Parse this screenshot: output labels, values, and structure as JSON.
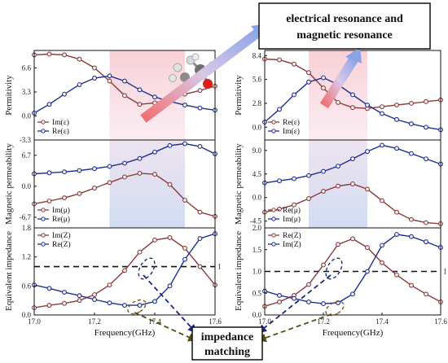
{
  "annotations": {
    "resonance_line1": "electrical resonance and",
    "resonance_line2": "magnetic resonance",
    "impedance_line1": "impedance",
    "impedance_line2": "matching",
    "unity_label": "1"
  },
  "colors": {
    "series_red": "#8b3a3a",
    "series_blue": "#1f2f8f",
    "shade_pink": "#f8c8cf",
    "shade_blue": "#c7d3ee"
  },
  "chart_data": [
    {
      "type": "line",
      "panel": "left-top",
      "ylabel": "Permitivity",
      "xlabel": "",
      "xlim": [
        17.0,
        17.6
      ],
      "ylim": [
        -3.3,
        9.0
      ],
      "yticks": [
        "-3.3",
        "0.0",
        "3.3",
        "6.6"
      ],
      "legend_position": "bottom-left",
      "series": [
        {
          "name": "Im(ε)",
          "color": "red",
          "x": [
            17.0,
            17.05,
            17.1,
            17.15,
            17.2,
            17.25,
            17.3,
            17.35,
            17.4,
            17.45,
            17.5,
            17.55,
            17.6
          ],
          "y": [
            8.4,
            8.5,
            8.4,
            7.8,
            6.6,
            4.8,
            2.8,
            1.6,
            1.8,
            2.4,
            3.0,
            3.5,
            4.1
          ]
        },
        {
          "name": "Re(ε)",
          "color": "blue",
          "x": [
            17.0,
            17.05,
            17.1,
            17.15,
            17.2,
            17.25,
            17.3,
            17.35,
            17.4,
            17.45,
            17.5,
            17.55,
            17.6
          ],
          "y": [
            0.4,
            1.6,
            3.0,
            4.3,
            5.2,
            5.5,
            4.8,
            3.6,
            2.6,
            2.0,
            1.5,
            1.1,
            0.8
          ]
        }
      ],
      "shade": {
        "color": "pink",
        "x": [
          17.25,
          17.5
        ]
      }
    },
    {
      "type": "line",
      "panel": "left-middle",
      "ylabel": "Magnetic permeability",
      "xlabel": "",
      "xlim": [
        17.0,
        17.6
      ],
      "ylim": [
        -9.0,
        10.0
      ],
      "yticks": [
        "-6.7",
        "0.0",
        "6.7"
      ],
      "legend_position": "bottom-left",
      "series": [
        {
          "name": "Im(μ)",
          "color": "red",
          "x": [
            17.0,
            17.05,
            17.1,
            17.15,
            17.2,
            17.25,
            17.3,
            17.35,
            17.4,
            17.45,
            17.5,
            17.55,
            17.6
          ],
          "y": [
            -3.8,
            -3.2,
            -2.5,
            -1.6,
            -0.4,
            0.8,
            2.0,
            2.8,
            2.6,
            0.4,
            -3.0,
            -5.6,
            -6.5
          ]
        },
        {
          "name": "Re(μ)",
          "color": "blue",
          "x": [
            17.0,
            17.05,
            17.1,
            17.15,
            17.2,
            17.25,
            17.3,
            17.35,
            17.4,
            17.45,
            17.5,
            17.55,
            17.6
          ],
          "y": [
            2.7,
            2.9,
            3.1,
            3.4,
            3.8,
            4.3,
            5.0,
            6.0,
            7.4,
            8.8,
            9.2,
            8.6,
            7.0
          ]
        }
      ],
      "shade": {
        "color": "blue",
        "x": [
          17.25,
          17.5
        ]
      }
    },
    {
      "type": "line",
      "panel": "left-bottom",
      "ylabel": "Equivalent impedance",
      "xlabel": "Frequency(GHz)",
      "xlim": [
        17.0,
        17.6
      ],
      "ylim": [
        0.0,
        1.8
      ],
      "xticks": [
        "17.0",
        "17.2",
        "17.4",
        "17.6"
      ],
      "yticks": [
        "0.0",
        "0.6",
        "1.2",
        "1.8"
      ],
      "legend_position": "top-left",
      "hline": 1.0,
      "series": [
        {
          "name": "Im(Z)",
          "color": "red",
          "x": [
            17.0,
            17.05,
            17.1,
            17.15,
            17.2,
            17.25,
            17.3,
            17.35,
            17.4,
            17.45,
            17.5,
            17.55,
            17.6
          ],
          "y": [
            0.15,
            0.2,
            0.24,
            0.3,
            0.42,
            0.62,
            0.92,
            1.3,
            1.55,
            1.6,
            1.38,
            1.0,
            0.62
          ]
        },
        {
          "name": "Re(Z)",
          "color": "blue",
          "x": [
            17.0,
            17.05,
            17.1,
            17.15,
            17.2,
            17.25,
            17.3,
            17.35,
            17.4,
            17.45,
            17.5,
            17.55,
            17.6
          ],
          "y": [
            0.62,
            0.55,
            0.47,
            0.4,
            0.32,
            0.25,
            0.2,
            0.2,
            0.28,
            0.6,
            1.15,
            1.58,
            1.68
          ]
        }
      ]
    },
    {
      "type": "line",
      "panel": "right-top",
      "ylabel": "Permitivity",
      "xlabel": "",
      "xlim": [
        17.0,
        17.6
      ],
      "ylim": [
        -1.5,
        9.0
      ],
      "yticks": [
        "0.0",
        "2.8",
        "5.6",
        "8.4"
      ],
      "legend_position": "bottom-left",
      "series": [
        {
          "name": "Re(ε)",
          "color": "red",
          "x": [
            17.0,
            17.05,
            17.1,
            17.15,
            17.2,
            17.25,
            17.3,
            17.35,
            17.4,
            17.45,
            17.5,
            17.55,
            17.6
          ],
          "y": [
            8.0,
            7.9,
            7.4,
            6.4,
            4.6,
            2.9,
            2.3,
            2.2,
            2.4,
            2.6,
            2.8,
            3.0,
            3.2
          ]
        },
        {
          "name": "Im(ε)",
          "color": "blue",
          "x": [
            17.0,
            17.05,
            17.1,
            17.15,
            17.2,
            17.25,
            17.3,
            17.35,
            17.4,
            17.45,
            17.5,
            17.55,
            17.6
          ],
          "y": [
            0.6,
            2.1,
            3.8,
            5.3,
            5.8,
            5.0,
            3.8,
            2.6,
            1.6,
            0.9,
            0.4,
            0.0,
            -0.3
          ]
        }
      ],
      "shade": {
        "color": "pink",
        "x": [
          17.15,
          17.35
        ]
      }
    },
    {
      "type": "line",
      "panel": "right-middle",
      "ylabel": "Magnetic permeability",
      "xlabel": "",
      "xlim": [
        17.0,
        17.6
      ],
      "ylim": [
        -5.8,
        11.0
      ],
      "yticks": [
        "-4.5",
        "0.0",
        "4.5",
        "9.0"
      ],
      "legend_position": "bottom-left",
      "series": [
        {
          "name": "Re(μ)",
          "color": "red",
          "x": [
            17.0,
            17.05,
            17.1,
            17.15,
            17.2,
            17.25,
            17.3,
            17.35,
            17.4,
            17.45,
            17.5,
            17.55,
            17.6
          ],
          "y": [
            -2.8,
            -2.2,
            -1.4,
            -0.2,
            1.2,
            2.2,
            2.6,
            1.6,
            -0.6,
            -2.8,
            -4.2,
            -4.8,
            -5.0
          ]
        },
        {
          "name": "Im(μ)",
          "color": "blue",
          "x": [
            17.0,
            17.05,
            17.1,
            17.15,
            17.2,
            17.25,
            17.3,
            17.35,
            17.4,
            17.45,
            17.5,
            17.55,
            17.6
          ],
          "y": [
            2.8,
            3.2,
            3.6,
            4.2,
            5.0,
            6.0,
            7.4,
            8.8,
            10.0,
            9.4,
            8.4,
            7.4,
            6.4
          ]
        }
      ],
      "shade": {
        "color": "blue",
        "x": [
          17.15,
          17.35
        ]
      }
    },
    {
      "type": "line",
      "panel": "right-bottom",
      "ylabel": "Equivalent impedance",
      "xlabel": "Frequency(GHz)",
      "xlim": [
        17.0,
        17.6
      ],
      "ylim": [
        0.0,
        2.0
      ],
      "xticks": [
        "17.0",
        "17.2",
        "17.4",
        "17.6"
      ],
      "yticks": [
        "0.0",
        "0.5",
        "1.0",
        "1.5",
        "2.0"
      ],
      "legend_position": "top-left",
      "hline": 1.0,
      "series": [
        {
          "name": "Re(Z)",
          "color": "red",
          "x": [
            17.0,
            17.05,
            17.1,
            17.15,
            17.2,
            17.25,
            17.3,
            17.35,
            17.4,
            17.45,
            17.5,
            17.55,
            17.6
          ],
          "y": [
            0.2,
            0.3,
            0.45,
            0.7,
            1.15,
            1.62,
            1.75,
            1.55,
            1.2,
            0.92,
            0.68,
            0.48,
            0.3
          ]
        },
        {
          "name": "Im(Z)",
          "color": "blue",
          "x": [
            17.0,
            17.05,
            17.1,
            17.15,
            17.2,
            17.25,
            17.3,
            17.35,
            17.4,
            17.45,
            17.5,
            17.55,
            17.6
          ],
          "y": [
            0.55,
            0.45,
            0.38,
            0.3,
            0.26,
            0.28,
            0.48,
            1.0,
            1.6,
            1.85,
            1.8,
            1.68,
            1.55
          ]
        }
      ]
    }
  ]
}
